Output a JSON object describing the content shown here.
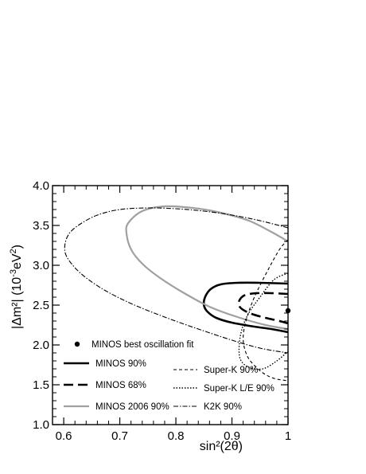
{
  "chart_data": {
    "type": "line",
    "xlabel": "sin²(2θ)",
    "ylabel_main": "|Δm²| (10",
    "ylabel_exp": "-3",
    "ylabel_unit": "eV",
    "ylabel_exp2": "2",
    "ylabel_close": ")",
    "xlim": [
      0.58,
      1.0
    ],
    "ylim": [
      1.0,
      4.0
    ],
    "grid": false,
    "x_ticks": [
      {
        "value": 0.6,
        "label": "0.6"
      },
      {
        "value": 0.7,
        "label": "0.7"
      },
      {
        "value": 0.8,
        "label": "0.8"
      },
      {
        "value": 0.9,
        "label": "0.9"
      },
      {
        "value": 1.0,
        "label": "1"
      }
    ],
    "y_ticks": [
      {
        "value": 1.0,
        "label": "1.0"
      },
      {
        "value": 1.5,
        "label": "1.5"
      },
      {
        "value": 2.0,
        "label": "2.0"
      },
      {
        "value": 2.5,
        "label": "2.5"
      },
      {
        "value": 3.0,
        "label": "3.0"
      },
      {
        "value": 3.5,
        "label": "3.5"
      },
      {
        "value": 4.0,
        "label": "4.0"
      }
    ],
    "best_fit": {
      "name": "MINOS best oscillation fit",
      "x": 1.0,
      "y": 2.43
    },
    "series": [
      {
        "name": "MINOS 90%",
        "color": "#000000",
        "style": "solid",
        "width": 2.6,
        "points": [
          [
            1.0,
            2.77
          ],
          [
            0.95,
            2.78
          ],
          [
            0.91,
            2.78
          ],
          [
            0.88,
            2.76
          ],
          [
            0.862,
            2.7
          ],
          [
            0.852,
            2.6
          ],
          [
            0.85,
            2.5
          ],
          [
            0.856,
            2.42
          ],
          [
            0.872,
            2.34
          ],
          [
            0.9,
            2.28
          ],
          [
            0.94,
            2.23
          ],
          [
            0.97,
            2.2
          ],
          [
            1.0,
            2.16
          ]
        ]
      },
      {
        "name": "MINOS 68%",
        "color": "#000000",
        "style": "dashed",
        "width": 2.6,
        "points": [
          [
            1.0,
            2.64
          ],
          [
            0.97,
            2.65
          ],
          [
            0.945,
            2.65
          ],
          [
            0.925,
            2.63
          ],
          [
            0.915,
            2.58
          ],
          [
            0.912,
            2.51
          ],
          [
            0.918,
            2.45
          ],
          [
            0.935,
            2.39
          ],
          [
            0.96,
            2.34
          ],
          [
            0.985,
            2.3
          ],
          [
            1.0,
            2.27
          ]
        ]
      },
      {
        "name": "MINOS 2006 90%",
        "color": "#a0a0a0",
        "style": "solid",
        "width": 2.2,
        "points": [
          [
            1.0,
            3.3
          ],
          [
            0.97,
            3.42
          ],
          [
            0.93,
            3.56
          ],
          [
            0.88,
            3.66
          ],
          [
            0.83,
            3.72
          ],
          [
            0.78,
            3.74
          ],
          [
            0.74,
            3.68
          ],
          [
            0.715,
            3.53
          ],
          [
            0.712,
            3.4
          ],
          [
            0.72,
            3.2
          ],
          [
            0.74,
            3.02
          ],
          [
            0.77,
            2.85
          ],
          [
            0.81,
            2.67
          ],
          [
            0.86,
            2.48
          ],
          [
            0.91,
            2.35
          ],
          [
            0.96,
            2.25
          ],
          [
            1.0,
            2.2
          ]
        ]
      },
      {
        "name": "Super-K 90%",
        "color": "#000000",
        "style": "shortdash",
        "width": 1.1,
        "points": [
          [
            1.0,
            3.32
          ],
          [
            0.985,
            3.2
          ],
          [
            0.965,
            2.95
          ],
          [
            0.94,
            2.6
          ],
          [
            0.925,
            2.3
          ],
          [
            0.92,
            2.08
          ],
          [
            0.925,
            1.9
          ],
          [
            0.935,
            1.78
          ],
          [
            0.955,
            1.65
          ],
          [
            0.975,
            1.58
          ],
          [
            1.0,
            1.55
          ]
        ]
      },
      {
        "name": "Super-K L/E 90%",
        "color": "#000000",
        "style": "dotted",
        "width": 1.4,
        "points": [
          [
            1.0,
            2.9
          ],
          [
            0.975,
            2.82
          ],
          [
            0.95,
            2.6
          ],
          [
            0.93,
            2.4
          ],
          [
            0.918,
            2.2
          ],
          [
            0.913,
            2.0
          ],
          [
            0.915,
            1.82
          ],
          [
            0.93,
            1.72
          ],
          [
            0.955,
            1.7
          ],
          [
            0.98,
            1.8
          ],
          [
            1.0,
            1.92
          ]
        ]
      },
      {
        "name": "K2K 90%",
        "color": "#000000",
        "style": "dashdot",
        "width": 1.1,
        "points": [
          [
            1.0,
            3.47
          ],
          [
            0.95,
            3.56
          ],
          [
            0.9,
            3.63
          ],
          [
            0.85,
            3.68
          ],
          [
            0.8,
            3.71
          ],
          [
            0.75,
            3.72
          ],
          [
            0.7,
            3.7
          ],
          [
            0.66,
            3.63
          ],
          [
            0.63,
            3.52
          ],
          [
            0.61,
            3.4
          ],
          [
            0.602,
            3.25
          ],
          [
            0.606,
            3.1
          ],
          [
            0.63,
            2.9
          ],
          [
            0.67,
            2.7
          ],
          [
            0.72,
            2.52
          ],
          [
            0.78,
            2.35
          ],
          [
            0.84,
            2.2
          ],
          [
            0.9,
            2.06
          ],
          [
            0.95,
            1.96
          ],
          [
            1.0,
            1.9
          ]
        ]
      }
    ],
    "legend": {
      "placement": "bottom",
      "entries": [
        {
          "label": "MINOS best oscillation fit",
          "style": "marker"
        },
        {
          "label": "MINOS 90%",
          "style": "solid",
          "color": "#000000"
        },
        {
          "label": "Super-K 90%",
          "style": "shortdash",
          "color": "#000000"
        },
        {
          "label": "MINOS 68%",
          "style": "dashed",
          "color": "#000000"
        },
        {
          "label": "Super-K L/E 90%",
          "style": "dotted",
          "color": "#000000"
        },
        {
          "label": "MINOS 2006 90%",
          "style": "solid",
          "color": "#a0a0a0"
        },
        {
          "label": "K2K 90%",
          "style": "dashdot",
          "color": "#000000"
        }
      ]
    }
  }
}
